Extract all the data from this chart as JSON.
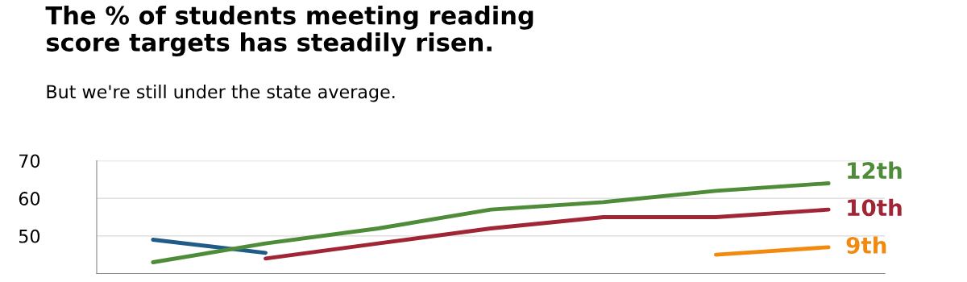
{
  "chart_data": {
    "type": "line",
    "title": "The % of students meeting reading\nscore targets has steadily risen.",
    "subtitle": "But we're still under the state average.",
    "categories": [
      null,
      null,
      null,
      null,
      null,
      null,
      null
    ],
    "series": [
      {
        "color": "#1f5c87",
        "values": [
          49,
          45.5,
          null,
          null,
          null,
          null,
          null
        ]
      },
      {
        "name": "12th",
        "color": "#4e8c3a",
        "values": [
          43,
          48,
          52,
          57,
          59,
          62,
          64
        ]
      },
      {
        "name": "10th",
        "color": "#a02535",
        "values": [
          null,
          44,
          48,
          52,
          55,
          55,
          57
        ]
      },
      {
        "name": "9th",
        "color": "#f28a10",
        "values": [
          null,
          null,
          null,
          null,
          null,
          45,
          47
        ]
      }
    ],
    "ylim": [
      40,
      70
    ],
    "yticks": [
      50,
      60,
      70
    ],
    "grid": "y",
    "legend": false,
    "marker": "none",
    "line_style": "solid",
    "tick_labels": "y"
  }
}
